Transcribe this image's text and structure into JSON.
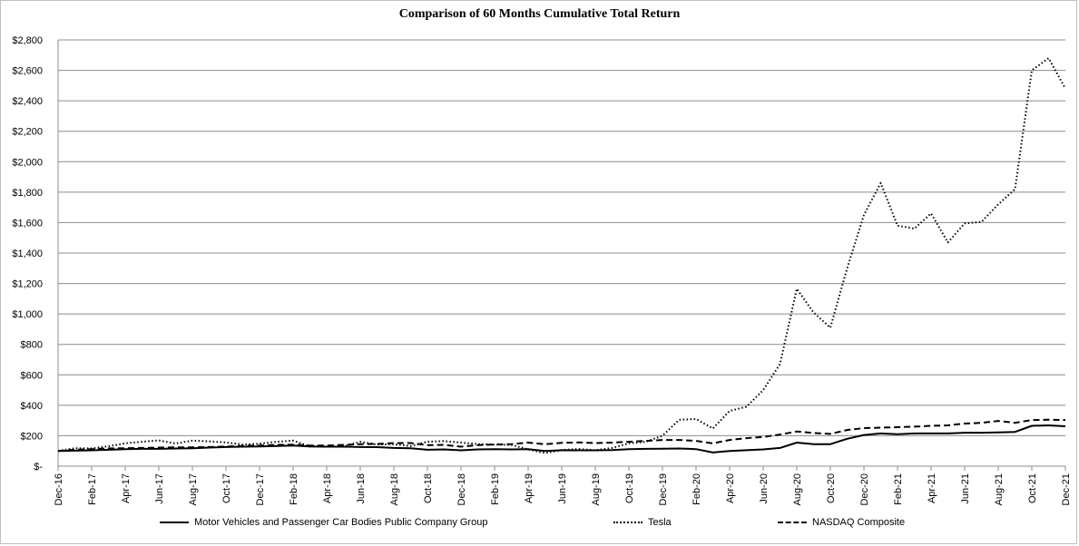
{
  "chart_data": {
    "type": "line",
    "title": "Comparison of 60 Months Cumulative Total Return",
    "xlabel": "",
    "ylabel": "",
    "ylim": [
      0,
      2800
    ],
    "y_ticks": [
      "$-",
      "$200",
      "$400",
      "$600",
      "$800",
      "$1,000",
      "$1,200",
      "$1,400",
      "$1,600",
      "$1,800",
      "$2,000",
      "$2,200",
      "$2,400",
      "$2,600",
      "$2,800"
    ],
    "y_tick_values": [
      0,
      200,
      400,
      600,
      800,
      1000,
      1200,
      1400,
      1600,
      1800,
      2000,
      2200,
      2400,
      2600,
      2800
    ],
    "x_tick_labels": [
      "Dec-16",
      "Feb-17",
      "Apr-17",
      "Jun-17",
      "Aug-17",
      "Oct-17",
      "Dec-17",
      "Feb-18",
      "Apr-18",
      "Jun-18",
      "Aug-18",
      "Oct-18",
      "Dec-18",
      "Feb-19",
      "Apr-19",
      "Jun-19",
      "Aug-19",
      "Oct-19",
      "Dec-19",
      "Feb-20",
      "Apr-20",
      "Jun-20",
      "Aug-20",
      "Oct-20",
      "Dec-20",
      "Feb-21",
      "Apr-21",
      "Jun-21",
      "Aug-21",
      "Oct-21",
      "Dec-21"
    ],
    "x": [
      "Dec-16",
      "Jan-17",
      "Feb-17",
      "Mar-17",
      "Apr-17",
      "May-17",
      "Jun-17",
      "Jul-17",
      "Aug-17",
      "Sep-17",
      "Oct-17",
      "Nov-17",
      "Dec-17",
      "Jan-18",
      "Feb-18",
      "Mar-18",
      "Apr-18",
      "May-18",
      "Jun-18",
      "Jul-18",
      "Aug-18",
      "Sep-18",
      "Oct-18",
      "Nov-18",
      "Dec-18",
      "Jan-19",
      "Feb-19",
      "Mar-19",
      "Apr-19",
      "May-19",
      "Jun-19",
      "Jul-19",
      "Aug-19",
      "Sep-19",
      "Oct-19",
      "Nov-19",
      "Dec-19",
      "Jan-20",
      "Feb-20",
      "Mar-20",
      "Apr-20",
      "May-20",
      "Jun-20",
      "Jul-20",
      "Aug-20",
      "Sep-20",
      "Oct-20",
      "Nov-20",
      "Dec-20",
      "Jan-21",
      "Feb-21",
      "Mar-21",
      "Apr-21",
      "May-21",
      "Jun-21",
      "Jul-21",
      "Aug-21",
      "Sep-21",
      "Oct-21",
      "Nov-21",
      "Dec-21"
    ],
    "series": [
      {
        "name": "Motor Vehicles and Passenger Car Bodies Public Company Group",
        "style": "solid",
        "color": "#000000",
        "values": [
          100,
          102,
          104,
          108,
          112,
          114,
          114,
          116,
          118,
          122,
          126,
          128,
          130,
          133,
          135,
          130,
          128,
          128,
          126,
          125,
          120,
          118,
          108,
          110,
          104,
          110,
          112,
          110,
          112,
          100,
          105,
          104,
          104,
          106,
          112,
          114,
          115,
          116,
          112,
          90,
          100,
          105,
          110,
          120,
          155,
          145,
          145,
          180,
          205,
          215,
          210,
          215,
          215,
          215,
          220,
          220,
          222,
          225,
          265,
          268,
          262
        ]
      },
      {
        "name": "Tesla",
        "style": "dotted",
        "color": "#000000",
        "values": [
          100,
          118,
          117,
          131,
          150,
          160,
          169,
          149,
          168,
          163,
          156,
          142,
          148,
          160,
          168,
          130,
          128,
          130,
          160,
          142,
          144,
          132,
          161,
          165,
          155,
          145,
          141,
          140,
          111,
          86,
          106,
          113,
          105,
          120,
          150,
          160,
          200,
          305,
          310,
          248,
          363,
          390,
          500,
          670,
          1165,
          1010,
          910,
          1300,
          1650,
          1860,
          1580,
          1560,
          1660,
          1470,
          1595,
          1605,
          1720,
          1820,
          2600,
          2680,
          2480
        ]
      },
      {
        "name": "NASDAQ Composite",
        "style": "dashed",
        "color": "#000000",
        "values": [
          100,
          108,
          112,
          117,
          118,
          120,
          122,
          124,
          124,
          126,
          129,
          133,
          136,
          140,
          141,
          136,
          135,
          140,
          145,
          146,
          152,
          152,
          138,
          140,
          128,
          138,
          143,
          145,
          155,
          144,
          153,
          156,
          152,
          155,
          160,
          166,
          172,
          172,
          166,
          150,
          172,
          184,
          192,
          208,
          228,
          218,
          212,
          238,
          250,
          253,
          256,
          260,
          265,
          268,
          280,
          285,
          297,
          285,
          303,
          305,
          303
        ]
      }
    ],
    "legend_position": "bottom",
    "grid": "horizontal"
  }
}
